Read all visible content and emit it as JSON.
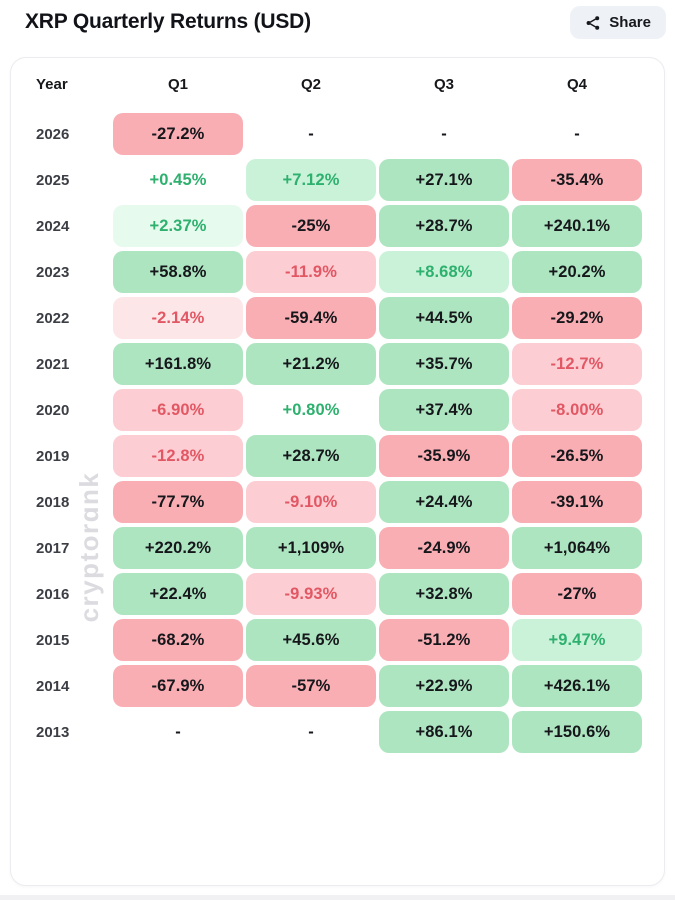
{
  "header": {
    "title": "XRP Quarterly Returns (USD)",
    "share_label": "Share"
  },
  "watermark": "cryptorɑnk",
  "palette": {
    "pos-3": {
      "bg": "#aee5c1",
      "text": "#15171b"
    },
    "pos-2": {
      "bg": "#c9f2d8",
      "text": "#2eb06e"
    },
    "pos-1": {
      "bg": "#e7faee",
      "text": "#2eb06e"
    },
    "pos-0": {
      "bg": "transparent",
      "text": "#2eb06e"
    },
    "neg-3": {
      "bg": "#f9aeb4",
      "text": "#15171b"
    },
    "neg-2": {
      "bg": "#fccdd2",
      "text": "#e25764"
    },
    "neg-1": {
      "bg": "#fde6e8",
      "text": "#e25764"
    },
    "none": {
      "bg": "transparent",
      "text": "#15171b"
    }
  },
  "table": {
    "columns": [
      "Year",
      "Q1",
      "Q2",
      "Q3",
      "Q4"
    ],
    "rows": [
      {
        "year": "2026",
        "cells": [
          {
            "text": "-27.2%",
            "level": "neg-3"
          },
          {
            "text": "-",
            "level": "none"
          },
          {
            "text": "-",
            "level": "none"
          },
          {
            "text": "-",
            "level": "none"
          }
        ]
      },
      {
        "year": "2025",
        "cells": [
          {
            "text": "+0.45%",
            "level": "pos-0"
          },
          {
            "text": "+7.12%",
            "level": "pos-2"
          },
          {
            "text": "+27.1%",
            "level": "pos-3"
          },
          {
            "text": "-35.4%",
            "level": "neg-3"
          }
        ]
      },
      {
        "year": "2024",
        "cells": [
          {
            "text": "+2.37%",
            "level": "pos-1"
          },
          {
            "text": "-25%",
            "level": "neg-3"
          },
          {
            "text": "+28.7%",
            "level": "pos-3"
          },
          {
            "text": "+240.1%",
            "level": "pos-3"
          }
        ]
      },
      {
        "year": "2023",
        "cells": [
          {
            "text": "+58.8%",
            "level": "pos-3"
          },
          {
            "text": "-11.9%",
            "level": "neg-2"
          },
          {
            "text": "+8.68%",
            "level": "pos-2"
          },
          {
            "text": "+20.2%",
            "level": "pos-3"
          }
        ]
      },
      {
        "year": "2022",
        "cells": [
          {
            "text": "-2.14%",
            "level": "neg-1"
          },
          {
            "text": "-59.4%",
            "level": "neg-3"
          },
          {
            "text": "+44.5%",
            "level": "pos-3"
          },
          {
            "text": "-29.2%",
            "level": "neg-3"
          }
        ]
      },
      {
        "year": "2021",
        "cells": [
          {
            "text": "+161.8%",
            "level": "pos-3"
          },
          {
            "text": "+21.2%",
            "level": "pos-3"
          },
          {
            "text": "+35.7%",
            "level": "pos-3"
          },
          {
            "text": "-12.7%",
            "level": "neg-2"
          }
        ]
      },
      {
        "year": "2020",
        "cells": [
          {
            "text": "-6.90%",
            "level": "neg-2"
          },
          {
            "text": "+0.80%",
            "level": "pos-0"
          },
          {
            "text": "+37.4%",
            "level": "pos-3"
          },
          {
            "text": "-8.00%",
            "level": "neg-2"
          }
        ]
      },
      {
        "year": "2019",
        "cells": [
          {
            "text": "-12.8%",
            "level": "neg-2"
          },
          {
            "text": "+28.7%",
            "level": "pos-3"
          },
          {
            "text": "-35.9%",
            "level": "neg-3"
          },
          {
            "text": "-26.5%",
            "level": "neg-3"
          }
        ]
      },
      {
        "year": "2018",
        "cells": [
          {
            "text": "-77.7%",
            "level": "neg-3"
          },
          {
            "text": "-9.10%",
            "level": "neg-2"
          },
          {
            "text": "+24.4%",
            "level": "pos-3"
          },
          {
            "text": "-39.1%",
            "level": "neg-3"
          }
        ]
      },
      {
        "year": "2017",
        "cells": [
          {
            "text": "+220.2%",
            "level": "pos-3"
          },
          {
            "text": "+1,109%",
            "level": "pos-3"
          },
          {
            "text": "-24.9%",
            "level": "neg-3"
          },
          {
            "text": "+1,064%",
            "level": "pos-3"
          }
        ]
      },
      {
        "year": "2016",
        "cells": [
          {
            "text": "+22.4%",
            "level": "pos-3"
          },
          {
            "text": "-9.93%",
            "level": "neg-2"
          },
          {
            "text": "+32.8%",
            "level": "pos-3"
          },
          {
            "text": "-27%",
            "level": "neg-3"
          }
        ]
      },
      {
        "year": "2015",
        "cells": [
          {
            "text": "-68.2%",
            "level": "neg-3"
          },
          {
            "text": "+45.6%",
            "level": "pos-3"
          },
          {
            "text": "-51.2%",
            "level": "neg-3"
          },
          {
            "text": "+9.47%",
            "level": "pos-2"
          }
        ]
      },
      {
        "year": "2014",
        "cells": [
          {
            "text": "-67.9%",
            "level": "neg-3"
          },
          {
            "text": "-57%",
            "level": "neg-3"
          },
          {
            "text": "+22.9%",
            "level": "pos-3"
          },
          {
            "text": "+426.1%",
            "level": "pos-3"
          }
        ]
      },
      {
        "year": "2013",
        "cells": [
          {
            "text": "-",
            "level": "none"
          },
          {
            "text": "-",
            "level": "none"
          },
          {
            "text": "+86.1%",
            "level": "pos-3"
          },
          {
            "text": "+150.6%",
            "level": "pos-3"
          }
        ]
      }
    ]
  },
  "chart_data": {
    "type": "heatmap",
    "title": "XRP Quarterly Returns (USD)",
    "columns": [
      "Q1",
      "Q2",
      "Q3",
      "Q4"
    ],
    "rows": [
      "2026",
      "2025",
      "2024",
      "2023",
      "2022",
      "2021",
      "2020",
      "2019",
      "2018",
      "2017",
      "2016",
      "2015",
      "2014",
      "2013"
    ],
    "values_pct": [
      [
        -27.2,
        null,
        null,
        null
      ],
      [
        0.45,
        7.12,
        27.1,
        -35.4
      ],
      [
        2.37,
        -25,
        28.7,
        240.1
      ],
      [
        58.8,
        -11.9,
        8.68,
        20.2
      ],
      [
        -2.14,
        -59.4,
        44.5,
        -29.2
      ],
      [
        161.8,
        21.2,
        35.7,
        -12.7
      ],
      [
        -6.9,
        0.8,
        37.4,
        -8.0
      ],
      [
        -12.8,
        28.7,
        -35.9,
        -26.5
      ],
      [
        -77.7,
        -9.1,
        24.4,
        -39.1
      ],
      [
        220.2,
        1109,
        -24.9,
        1064
      ],
      [
        22.4,
        -9.93,
        32.8,
        -27
      ],
      [
        -68.2,
        45.6,
        -51.2,
        9.47
      ],
      [
        -67.9,
        -57,
        22.9,
        426.1
      ],
      [
        null,
        null,
        86.1,
        150.6
      ]
    ],
    "legend_position": "none",
    "color_rule": "green = positive return, red = negative return; saturation scales with magnitude"
  }
}
